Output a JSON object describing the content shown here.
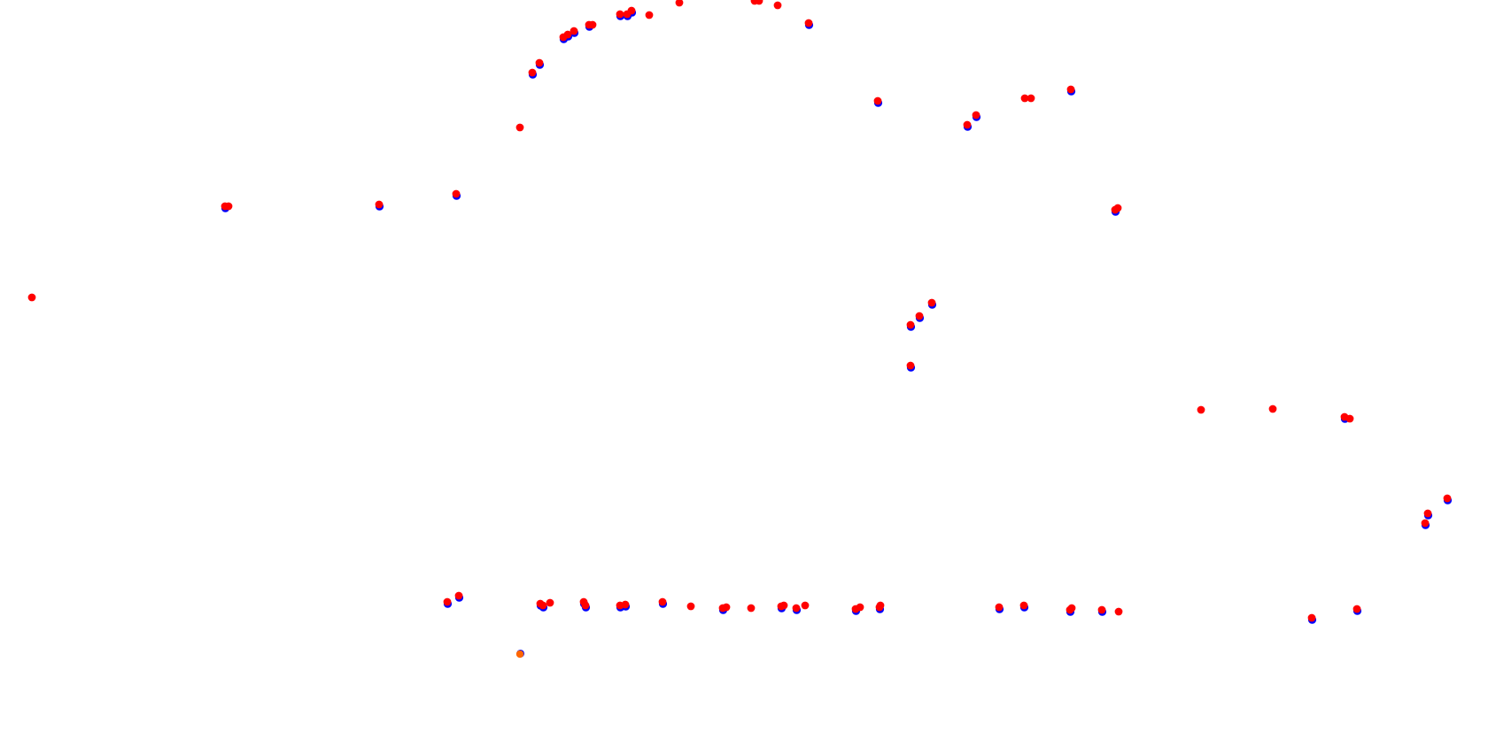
{
  "colors": {
    "background": "#ffffff",
    "primary": "#ff0000",
    "shadow": "#0000ff",
    "highlight": "#ff6600"
  },
  "markers": {
    "count": 91,
    "highlight_count": 1,
    "shape": "filled-circle"
  }
}
